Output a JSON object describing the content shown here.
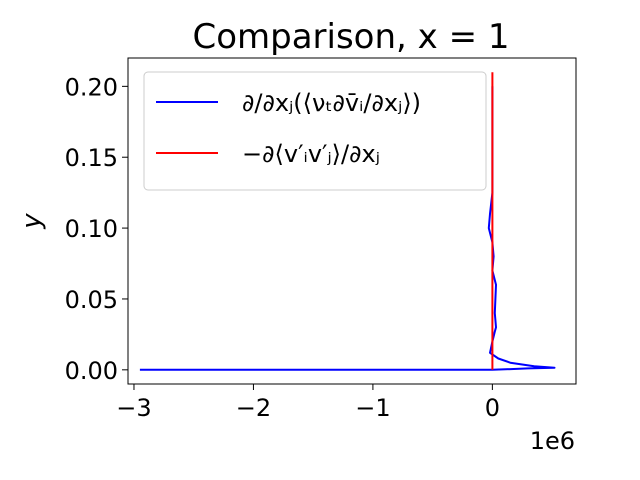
{
  "chart_data": {
    "type": "line",
    "title": "Comparison, x = 1",
    "xlabel": "",
    "ylabel": "y",
    "x_offset_label": "1e6",
    "xlim": [
      -3.05,
      0.7
    ],
    "ylim": [
      -0.01,
      0.22
    ],
    "x_unit_multiplier": 1000000,
    "xticks": [
      -3,
      -2,
      -1,
      0
    ],
    "xtick_labels": [
      "−3",
      "−2",
      "−1",
      "0"
    ],
    "yticks": [
      0.0,
      0.05,
      0.1,
      0.15,
      0.2
    ],
    "ytick_labels": [
      "0.00",
      "0.05",
      "0.10",
      "0.15",
      "0.20"
    ],
    "grid": false,
    "legend_position": "top",
    "series": [
      {
        "name": "∂/∂xⱼ(⟨νₜ∂v̄ᵢ/∂xⱼ⟩)",
        "color": "#0000ff",
        "points": [
          [
            -2.95,
            0.0
          ],
          [
            0.0,
            0.0
          ],
          [
            0.3,
            0.001
          ],
          [
            0.52,
            0.0015
          ],
          [
            0.35,
            0.0025
          ],
          [
            0.15,
            0.005
          ],
          [
            0.05,
            0.008
          ],
          [
            -0.02,
            0.012
          ],
          [
            0.0,
            0.02
          ],
          [
            0.02,
            0.027
          ],
          [
            0.03,
            0.03
          ],
          [
            0.02,
            0.04
          ],
          [
            0.03,
            0.06
          ],
          [
            0.0,
            0.07
          ],
          [
            0.01,
            0.08
          ],
          [
            0.0,
            0.09
          ],
          [
            -0.03,
            0.1
          ],
          [
            -0.02,
            0.11
          ],
          [
            0.0,
            0.125
          ],
          [
            0.0,
            0.14
          ],
          [
            0.0,
            0.2
          ]
        ]
      },
      {
        "name": "−∂⟨v′ᵢv′ⱼ⟩/∂xⱼ",
        "color": "#ff0000",
        "points": [
          [
            0.0,
            0.0
          ],
          [
            0.0,
            0.05
          ],
          [
            0.0,
            0.1
          ],
          [
            0.0,
            0.15
          ],
          [
            0.0,
            0.21
          ]
        ]
      }
    ]
  }
}
